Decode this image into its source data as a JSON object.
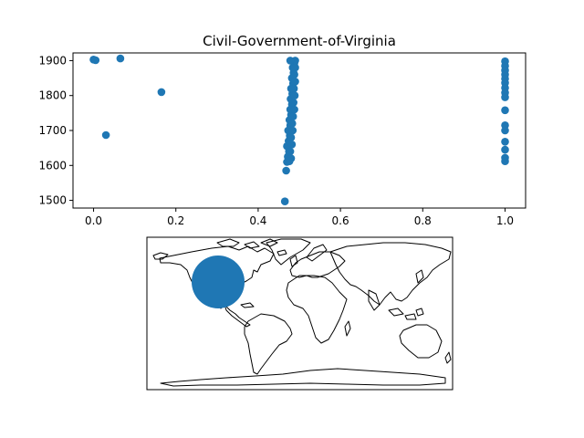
{
  "chart_data": [
    {
      "type": "scatter",
      "title": "Civil-Government-of-Virginia",
      "xlabel": "",
      "ylabel": "",
      "xlim": [
        -0.05,
        1.05
      ],
      "ylim": [
        1478,
        1922
      ],
      "xticks": [
        0.0,
        0.2,
        0.4,
        0.6,
        0.8,
        1.0
      ],
      "xtick_labels": [
        "0.0",
        "0.2",
        "0.4",
        "0.6",
        "0.8",
        "1.0"
      ],
      "yticks": [
        1500,
        1600,
        1700,
        1800,
        1900
      ],
      "ytick_labels": [
        "1500",
        "1600",
        "1700",
        "1800",
        "1900"
      ],
      "grid": false,
      "color": "#1f77b4",
      "series": [
        {
          "points": [
            [
              0.0,
              1903
            ],
            [
              0.005,
              1901
            ],
            [
              0.065,
              1906
            ],
            [
              0.165,
              1810
            ],
            [
              0.03,
              1687
            ],
            [
              0.465,
              1497
            ],
            [
              0.468,
              1585
            ],
            [
              0.47,
              1610
            ],
            [
              0.472,
              1625
            ],
            [
              0.475,
              1640
            ],
            [
              0.47,
              1655
            ],
            [
              0.474,
              1670
            ],
            [
              0.477,
              1685
            ],
            [
              0.473,
              1700
            ],
            [
              0.478,
              1715
            ],
            [
              0.476,
              1730
            ],
            [
              0.48,
              1745
            ],
            [
              0.478,
              1760
            ],
            [
              0.482,
              1775
            ],
            [
              0.479,
              1790
            ],
            [
              0.483,
              1805
            ],
            [
              0.48,
              1820
            ],
            [
              0.485,
              1835
            ],
            [
              0.482,
              1850
            ],
            [
              0.486,
              1865
            ],
            [
              0.484,
              1880
            ],
            [
              0.488,
              1893
            ],
            [
              0.49,
              1900
            ],
            [
              0.478,
              1900
            ],
            [
              0.49,
              1880
            ],
            [
              0.488,
              1860
            ],
            [
              0.49,
              1840
            ],
            [
              0.487,
              1820
            ],
            [
              0.489,
              1800
            ],
            [
              0.486,
              1780
            ],
            [
              0.488,
              1760
            ],
            [
              0.485,
              1740
            ],
            [
              0.483,
              1720
            ],
            [
              0.484,
              1700
            ],
            [
              0.48,
              1680
            ],
            [
              0.482,
              1660
            ],
            [
              0.478,
              1640
            ],
            [
              0.48,
              1620
            ],
            [
              0.476,
              1612
            ],
            [
              1.0,
              1898
            ],
            [
              1.0,
              1885
            ],
            [
              1.0,
              1872
            ],
            [
              1.0,
              1860
            ],
            [
              1.0,
              1848
            ],
            [
              1.0,
              1836
            ],
            [
              1.0,
              1822
            ],
            [
              1.0,
              1808
            ],
            [
              1.0,
              1795
            ],
            [
              1.0,
              1758
            ],
            [
              1.0,
              1715
            ],
            [
              1.0,
              1700
            ],
            [
              1.0,
              1668
            ],
            [
              1.0,
              1645
            ],
            [
              1.0,
              1622
            ],
            [
              1.0,
              1612
            ]
          ]
        }
      ]
    },
    {
      "type": "map",
      "projection": "equirectangular",
      "lon_range": [
        -180,
        180
      ],
      "lat_range": [
        -90,
        90
      ],
      "coastlines": true,
      "markers": [
        {
          "lon": -114,
          "lat": 37,
          "size": "large",
          "color": "#1f77b4"
        }
      ]
    }
  ]
}
